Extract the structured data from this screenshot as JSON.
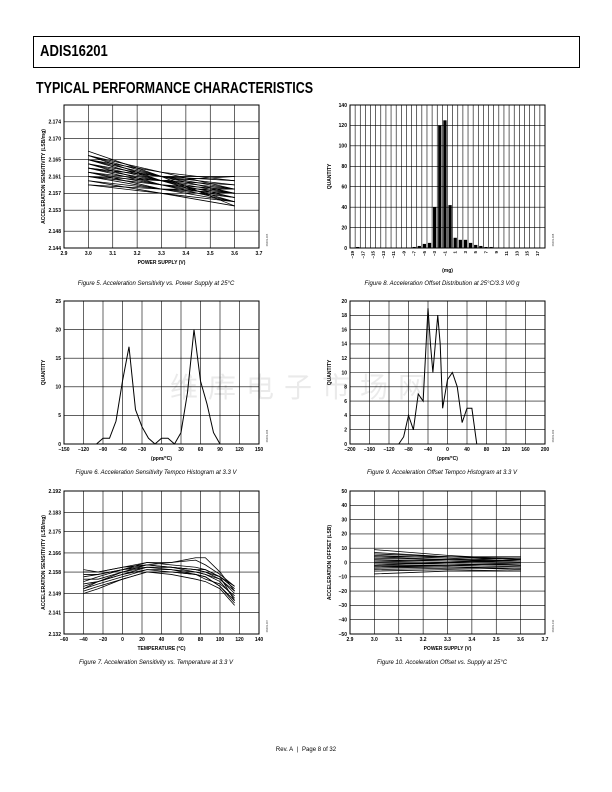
{
  "header": {
    "title": "ADIS16201"
  },
  "section_title": "TYPICAL PERFORMANCE CHARACTERISTICS",
  "watermark": "维库电子市场网",
  "footer": {
    "rev": "Rev. A",
    "separator": "|",
    "page": "Page 8 of 32"
  },
  "chart_data": [
    {
      "id": "fig5",
      "type": "line",
      "title": "",
      "caption": "Figure 5. Acceleration Sensitivity vs. Power Supply at 25°C",
      "xlabel": "POWER SUPPLY (V)",
      "ylabel": "ACCELERATION SENSITIVITY (LSB/mg)",
      "side_code": "06403-005",
      "xlim": [
        2.9,
        3.7
      ],
      "ylim": [
        2.144,
        2.178
      ],
      "xticks": [
        2.9,
        3.0,
        3.1,
        3.2,
        3.3,
        3.4,
        3.5,
        3.6,
        3.7
      ],
      "xtick_labels": [
        "2.9",
        "3.0",
        "3.1",
        "3.2",
        "3.3",
        "3.4",
        "3.5",
        "3.6",
        "3.7"
      ],
      "yticks": [
        2.144,
        2.148,
        2.153,
        2.157,
        2.161,
        2.165,
        2.17,
        2.174
      ],
      "ytick_labels": [
        "2.144",
        "2.148",
        "2.153",
        "2.157",
        "2.161",
        "2.165",
        "2.170",
        "2.174"
      ],
      "grid": true,
      "x": [
        3.0,
        3.3,
        3.6
      ],
      "series": [
        {
          "values": [
            2.167,
            2.161,
            2.154
          ]
        },
        {
          "values": [
            2.166,
            2.16,
            2.155
          ]
        },
        {
          "values": [
            2.166,
            2.161,
            2.157
          ]
        },
        {
          "values": [
            2.165,
            2.16,
            2.156
          ]
        },
        {
          "values": [
            2.165,
            2.161,
            2.158
          ]
        },
        {
          "values": [
            2.164,
            2.16,
            2.157
          ]
        },
        {
          "values": [
            2.164,
            2.161,
            2.159
          ]
        },
        {
          "values": [
            2.164,
            2.159,
            2.155
          ]
        },
        {
          "values": [
            2.163,
            2.16,
            2.158
          ]
        },
        {
          "values": [
            2.163,
            2.159,
            2.156
          ]
        },
        {
          "values": [
            2.163,
            2.161,
            2.16
          ]
        },
        {
          "values": [
            2.162,
            2.159,
            2.157
          ]
        },
        {
          "values": [
            2.162,
            2.16,
            2.159
          ]
        },
        {
          "values": [
            2.162,
            2.158,
            2.155
          ]
        },
        {
          "values": [
            2.161,
            2.159,
            2.158
          ]
        },
        {
          "values": [
            2.161,
            2.158,
            2.156
          ]
        },
        {
          "values": [
            2.161,
            2.16,
            2.161
          ]
        },
        {
          "values": [
            2.16,
            2.158,
            2.157
          ]
        },
        {
          "values": [
            2.16,
            2.157,
            2.154
          ]
        },
        {
          "values": [
            2.159,
            2.158,
            2.158
          ]
        },
        {
          "values": [
            2.165,
            2.162,
            2.16
          ]
        },
        {
          "values": [
            2.166,
            2.162,
            2.158
          ]
        },
        {
          "values": [
            2.159,
            2.157,
            2.155
          ]
        },
        {
          "values": [
            2.163,
            2.161,
            2.161
          ]
        }
      ]
    },
    {
      "id": "fig8",
      "type": "bar",
      "title": "",
      "caption": "Figure 8. Acceleration Offset Distribution at 25°C/3.3 V/0 g",
      "xlabel": "(mg)",
      "ylabel": "QUANTITY",
      "side_code": "06403-008",
      "ylim": [
        0,
        140
      ],
      "yticks": [
        0,
        20,
        40,
        60,
        80,
        100,
        120,
        140
      ],
      "ytick_labels": [
        "0",
        "20",
        "40",
        "60",
        "80",
        "100",
        "120",
        "140"
      ],
      "grid": true,
      "categories": [
        "-19",
        "-18",
        "-17",
        "-16",
        "-15",
        "-14",
        "-13",
        "-12",
        "-11",
        "-10",
        "-9",
        "-8",
        "-7",
        "-6",
        "-5",
        "-4",
        "-3",
        "-2",
        "-1",
        "0",
        "1",
        "2",
        "3",
        "4",
        "5",
        "6",
        "7",
        "8",
        "9",
        "10",
        "11",
        "12",
        "13",
        "14",
        "15",
        "16",
        "17",
        "18"
      ],
      "category_labels": [
        "–19",
        "",
        "–17",
        "",
        "–15",
        "",
        "–13",
        "",
        "–11",
        "",
        "–9",
        "",
        "–7",
        "",
        "–5",
        "",
        "–3",
        "",
        "–1",
        "",
        "1",
        "",
        "3",
        "",
        "5",
        "",
        "7",
        "",
        "9",
        "",
        "11",
        "",
        "13",
        "",
        "15",
        "",
        "17",
        ""
      ],
      "values": [
        0,
        1,
        0,
        0,
        0,
        0,
        0,
        0,
        0,
        0,
        0,
        0,
        1,
        2,
        4,
        5,
        40,
        120,
        125,
        42,
        10,
        8,
        8,
        5,
        3,
        2,
        1,
        1,
        0,
        0,
        0,
        0,
        0,
        0,
        0,
        0,
        0,
        0
      ]
    },
    {
      "id": "fig6",
      "type": "line",
      "title": "",
      "caption": "Figure 6. Acceleration Sensitivity Tempco Histogram at 3.3 V",
      "xlabel": "(ppm/°C)",
      "ylabel": "QUANTITY",
      "side_code": "06403-006",
      "xlim": [
        -150,
        150
      ],
      "ylim": [
        0,
        25
      ],
      "xticks": [
        -150,
        -120,
        -90,
        -60,
        -30,
        0,
        30,
        60,
        90,
        120,
        150
      ],
      "xtick_labels": [
        "–150",
        "–120",
        "–90",
        "–60",
        "–30",
        "0",
        "30",
        "60",
        "90",
        "120",
        "150"
      ],
      "yticks": [
        0,
        5,
        10,
        15,
        20,
        25
      ],
      "ytick_labels": [
        "0",
        "5",
        "10",
        "15",
        "20",
        "25"
      ],
      "grid": true,
      "x": [
        -150,
        -120,
        -100,
        -90,
        -80,
        -70,
        -60,
        -50,
        -40,
        -30,
        -20,
        -10,
        0,
        10,
        20,
        30,
        40,
        50,
        60,
        70,
        80,
        90,
        100,
        150
      ],
      "series": [
        {
          "values": [
            0,
            0,
            0,
            1,
            1,
            4,
            11,
            17,
            6,
            3,
            1,
            0,
            1,
            1,
            0,
            2,
            9,
            20,
            11,
            7,
            2,
            0,
            0,
            0
          ]
        }
      ]
    },
    {
      "id": "fig9",
      "type": "line",
      "title": "",
      "caption": "Figure 9. Acceleration Offset Tempco Histogram at 3.3 V",
      "xlabel": "(ppm/°C)",
      "ylabel": "QUANTITY",
      "side_code": "06403-009",
      "xlim": [
        -200,
        200
      ],
      "ylim": [
        0,
        20
      ],
      "xticks": [
        -200,
        -160,
        -120,
        -80,
        -40,
        0,
        40,
        80,
        120,
        160,
        200
      ],
      "xtick_labels": [
        "–200",
        "–160",
        "–120",
        "–80",
        "–40",
        "0",
        "40",
        "80",
        "120",
        "160",
        "200"
      ],
      "yticks": [
        0,
        2,
        4,
        6,
        8,
        10,
        12,
        14,
        16,
        18,
        20
      ],
      "ytick_labels": [
        "0",
        "2",
        "4",
        "6",
        "8",
        "10",
        "12",
        "14",
        "16",
        "18",
        "20"
      ],
      "grid": true,
      "x": [
        -200,
        -100,
        -90,
        -80,
        -70,
        -60,
        -50,
        -40,
        -35,
        -30,
        -20,
        -15,
        -10,
        0,
        10,
        20,
        30,
        40,
        50,
        60,
        200
      ],
      "series": [
        {
          "values": [
            0,
            0,
            1,
            4,
            2,
            7,
            6,
            19,
            14,
            10,
            18,
            14,
            5,
            9,
            10,
            8,
            3,
            5,
            5,
            0,
            0
          ]
        }
      ]
    },
    {
      "id": "fig7",
      "type": "line",
      "title": "",
      "caption": "Figure 7. Acceleration Sensitivity vs. Temperature at 3.3 V",
      "xlabel": "TEMPERATURE (°C)",
      "ylabel": "ACCELERATION SENSITIVITY (LSB/mg)",
      "side_code": "06403-007",
      "xlim": [
        -60,
        140
      ],
      "ylim": [
        2.132,
        2.192
      ],
      "xticks": [
        -60,
        -40,
        -20,
        0,
        20,
        40,
        60,
        80,
        100,
        120,
        140
      ],
      "xtick_labels": [
        "–60",
        "–40",
        "–20",
        "0",
        "20",
        "40",
        "60",
        "80",
        "100",
        "120",
        "140"
      ],
      "yticks": [
        2.132,
        2.141,
        2.149,
        2.158,
        2.166,
        2.175,
        2.183,
        2.192
      ],
      "ytick_labels": [
        "2.132",
        "2.141",
        "2.149",
        "2.158",
        "2.166",
        "2.175",
        "2.183",
        "2.192"
      ],
      "grid": true,
      "x": [
        -40,
        -25,
        0,
        25,
        50,
        75,
        85,
        100,
        115
      ],
      "series": [
        {
          "values": [
            2.151,
            2.153,
            2.156,
            2.159,
            2.158,
            2.157,
            2.156,
            2.152,
            2.145
          ]
        },
        {
          "values": [
            2.153,
            2.154,
            2.157,
            2.16,
            2.159,
            2.158,
            2.157,
            2.154,
            2.147
          ]
        },
        {
          "values": [
            2.155,
            2.155,
            2.158,
            2.161,
            2.16,
            2.159,
            2.158,
            2.155,
            2.149
          ]
        },
        {
          "values": [
            2.157,
            2.157,
            2.159,
            2.162,
            2.161,
            2.16,
            2.159,
            2.156,
            2.151
          ]
        },
        {
          "values": [
            2.159,
            2.158,
            2.16,
            2.162,
            2.162,
            2.163,
            2.161,
            2.157,
            2.152
          ]
        },
        {
          "values": [
            2.154,
            2.156,
            2.159,
            2.161,
            2.162,
            2.164,
            2.164,
            2.158,
            2.15
          ]
        },
        {
          "values": [
            2.15,
            2.152,
            2.155,
            2.158,
            2.157,
            2.155,
            2.154,
            2.151,
            2.144
          ]
        },
        {
          "values": [
            2.156,
            2.157,
            2.159,
            2.16,
            2.16,
            2.159,
            2.158,
            2.156,
            2.152
          ]
        },
        {
          "values": [
            2.152,
            2.154,
            2.157,
            2.159,
            2.159,
            2.157,
            2.155,
            2.153,
            2.148
          ]
        },
        {
          "values": [
            2.158,
            2.158,
            2.16,
            2.161,
            2.16,
            2.158,
            2.157,
            2.155,
            2.15
          ]
        },
        {
          "values": [
            2.151,
            2.154,
            2.158,
            2.16,
            2.16,
            2.159,
            2.159,
            2.156,
            2.146
          ]
        },
        {
          "values": [
            2.149,
            2.151,
            2.155,
            2.158,
            2.158,
            2.157,
            2.156,
            2.152,
            2.146
          ]
        }
      ]
    },
    {
      "id": "fig10",
      "type": "line",
      "title": "",
      "caption": "Figure 10. Acceleration Offset vs. Supply at 25°C",
      "xlabel": "POWER SUPPLY (V)",
      "ylabel": "ACCELERATION OFFSET (LSB)",
      "side_code": "06403-010",
      "xlim": [
        2.9,
        3.7
      ],
      "ylim": [
        -50,
        50
      ],
      "xticks": [
        2.9,
        3.0,
        3.1,
        3.2,
        3.3,
        3.4,
        3.5,
        3.6,
        3.7
      ],
      "xtick_labels": [
        "2.9",
        "3.0",
        "3.1",
        "3.2",
        "3.3",
        "3.4",
        "3.5",
        "3.6",
        "3.7"
      ],
      "yticks": [
        -50,
        -40,
        -30,
        -20,
        -10,
        0,
        10,
        20,
        30,
        40,
        50
      ],
      "ytick_labels": [
        "–50",
        "–40",
        "–30",
        "–20",
        "–10",
        "0",
        "10",
        "20",
        "30",
        "40",
        "50"
      ],
      "grid": true,
      "x": [
        3.0,
        3.3,
        3.6
      ],
      "series": [
        {
          "values": [
            9,
            5,
            2
          ]
        },
        {
          "values": [
            7,
            4,
            3
          ]
        },
        {
          "values": [
            6,
            4,
            2
          ]
        },
        {
          "values": [
            5,
            3,
            1
          ]
        },
        {
          "values": [
            4,
            2,
            0
          ]
        },
        {
          "values": [
            3,
            2,
            1
          ]
        },
        {
          "values": [
            2,
            1,
            0
          ]
        },
        {
          "values": [
            1,
            0,
            -1
          ]
        },
        {
          "values": [
            0,
            -1,
            -2
          ]
        },
        {
          "values": [
            -1,
            -1,
            -2
          ]
        },
        {
          "values": [
            -2,
            -2,
            -3
          ]
        },
        {
          "values": [
            -3,
            -3,
            -4
          ]
        },
        {
          "values": [
            -4,
            -3,
            -5
          ]
        },
        {
          "values": [
            -5,
            -4,
            -4
          ]
        },
        {
          "values": [
            -6,
            -5,
            -6
          ]
        },
        {
          "values": [
            -8,
            -6,
            -6
          ]
        },
        {
          "values": [
            4,
            4,
            4
          ]
        },
        {
          "values": [
            -2,
            0,
            2
          ]
        },
        {
          "values": [
            1,
            2,
            3
          ]
        },
        {
          "values": [
            -3,
            -2,
            -1
          ]
        }
      ]
    }
  ]
}
